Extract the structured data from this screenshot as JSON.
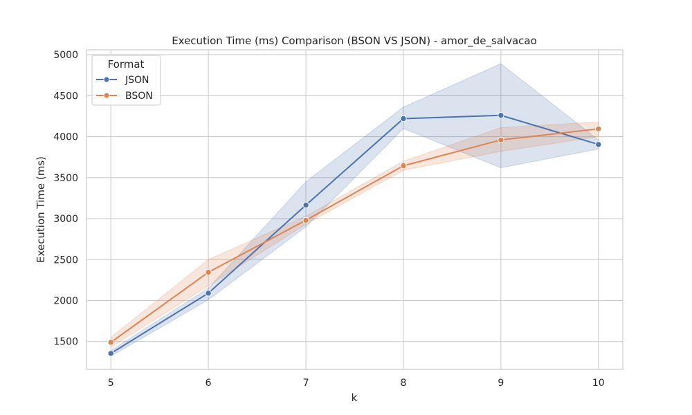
{
  "chart_data": {
    "type": "line",
    "title": "Execution Time (ms) Comparison (BSON VS JSON) - amor_de_salvacao",
    "xlabel": "k",
    "ylabel": "Execution Time (ms)",
    "x": [
      5,
      6,
      7,
      8,
      9,
      10
    ],
    "xlim": [
      4.75,
      10.25
    ],
    "ylim": [
      1160,
      5060
    ],
    "yticks": [
      1500,
      2000,
      2500,
      3000,
      3500,
      4000,
      4500,
      5000
    ],
    "grid": true,
    "legend": {
      "title": "Format",
      "placement": "top-left"
    },
    "series": [
      {
        "name": "JSON",
        "color": "#4c72b0",
        "values": [
          1355,
          2090,
          3165,
          4220,
          4260,
          3905
        ],
        "ci_lower": [
          1320,
          2010,
          2900,
          4100,
          3620,
          3850
        ],
        "ci_upper": [
          1390,
          2150,
          3450,
          4360,
          4890,
          3960
        ]
      },
      {
        "name": "BSON",
        "color": "#dd8452",
        "values": [
          1490,
          2345,
          2980,
          3645,
          3960,
          4095
        ],
        "ci_lower": [
          1430,
          2180,
          2930,
          3590,
          3820,
          4000
        ],
        "ci_upper": [
          1550,
          2500,
          3030,
          3700,
          4110,
          4180
        ]
      }
    ]
  }
}
